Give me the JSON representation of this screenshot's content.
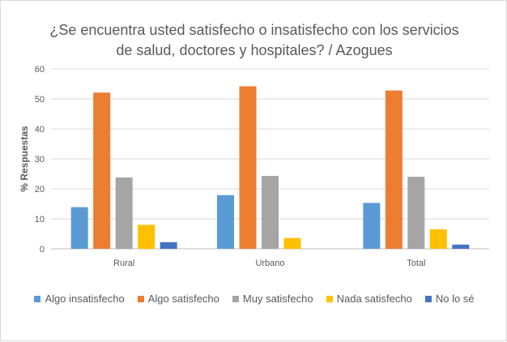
{
  "chart_data": {
    "type": "bar",
    "title_line1": "¿Se encuentra usted satisfecho o insatisfecho con los servicios",
    "title_line2": "de salud, doctores y hospitales? / Azogues",
    "ylabel": "% Respuestas",
    "xlabel": "",
    "ylim": [
      0,
      60
    ],
    "yticks": [
      0,
      10,
      20,
      30,
      40,
      50,
      60
    ],
    "grid": true,
    "legend_position": "bottom",
    "categories": [
      "Rural",
      "Urbano",
      "Total"
    ],
    "series": [
      {
        "name": "Algo insatisfecho",
        "color": "#5b9bd5",
        "values": [
          13.9,
          17.9,
          15.3
        ]
      },
      {
        "name": "Algo satisfecho",
        "color": "#ed7d31",
        "values": [
          52.1,
          54.2,
          52.8
        ]
      },
      {
        "name": "Muy satisfecho",
        "color": "#a5a5a5",
        "values": [
          23.8,
          24.3,
          24.0
        ]
      },
      {
        "name": "Nada satisfecho",
        "color": "#ffc000",
        "values": [
          8.0,
          3.6,
          6.5
        ]
      },
      {
        "name": "No lo sé",
        "color": "#4472c4",
        "values": [
          2.2,
          0,
          1.4
        ]
      }
    ]
  }
}
